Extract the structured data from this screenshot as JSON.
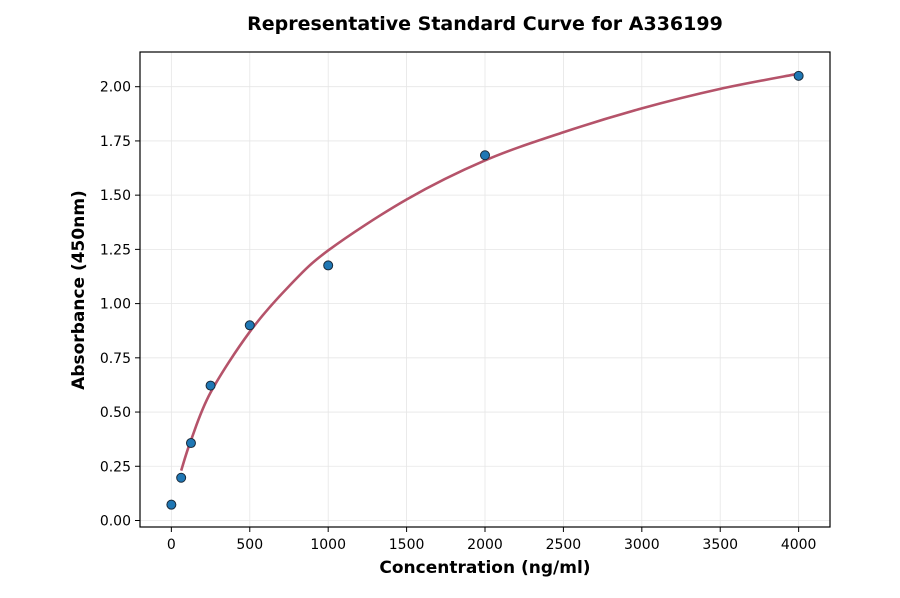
{
  "chart_data": {
    "type": "scatter",
    "title": "Representative Standard Curve for A336199",
    "xlabel": "Concentration (ng/ml)",
    "ylabel": "Absorbance (450nm)",
    "xlim": [
      -200,
      4200
    ],
    "ylim": [
      -0.03,
      2.16
    ],
    "xticks": [
      0,
      500,
      1000,
      1500,
      2000,
      2500,
      3000,
      3500,
      4000
    ],
    "yticks": [
      0.0,
      0.25,
      0.5,
      0.75,
      1.0,
      1.25,
      1.5,
      1.75,
      2.0
    ],
    "grid": true,
    "points": {
      "x": [
        0,
        62.5,
        125,
        250,
        500,
        1000,
        2000,
        4000
      ],
      "y": [
        0.073,
        0.197,
        0.357,
        0.622,
        0.9,
        1.176,
        1.684,
        2.05
      ],
      "color": "#1f77b4"
    },
    "fit_curve": {
      "x": [
        62.5,
        125,
        250,
        500,
        750,
        1000,
        1500,
        2000,
        2500,
        3000,
        3500,
        4000
      ],
      "y": [
        0.23,
        0.37,
        0.59,
        0.87,
        1.08,
        1.245,
        1.48,
        1.66,
        1.79,
        1.9,
        1.99,
        2.06
      ],
      "color": "#b5536a"
    }
  }
}
